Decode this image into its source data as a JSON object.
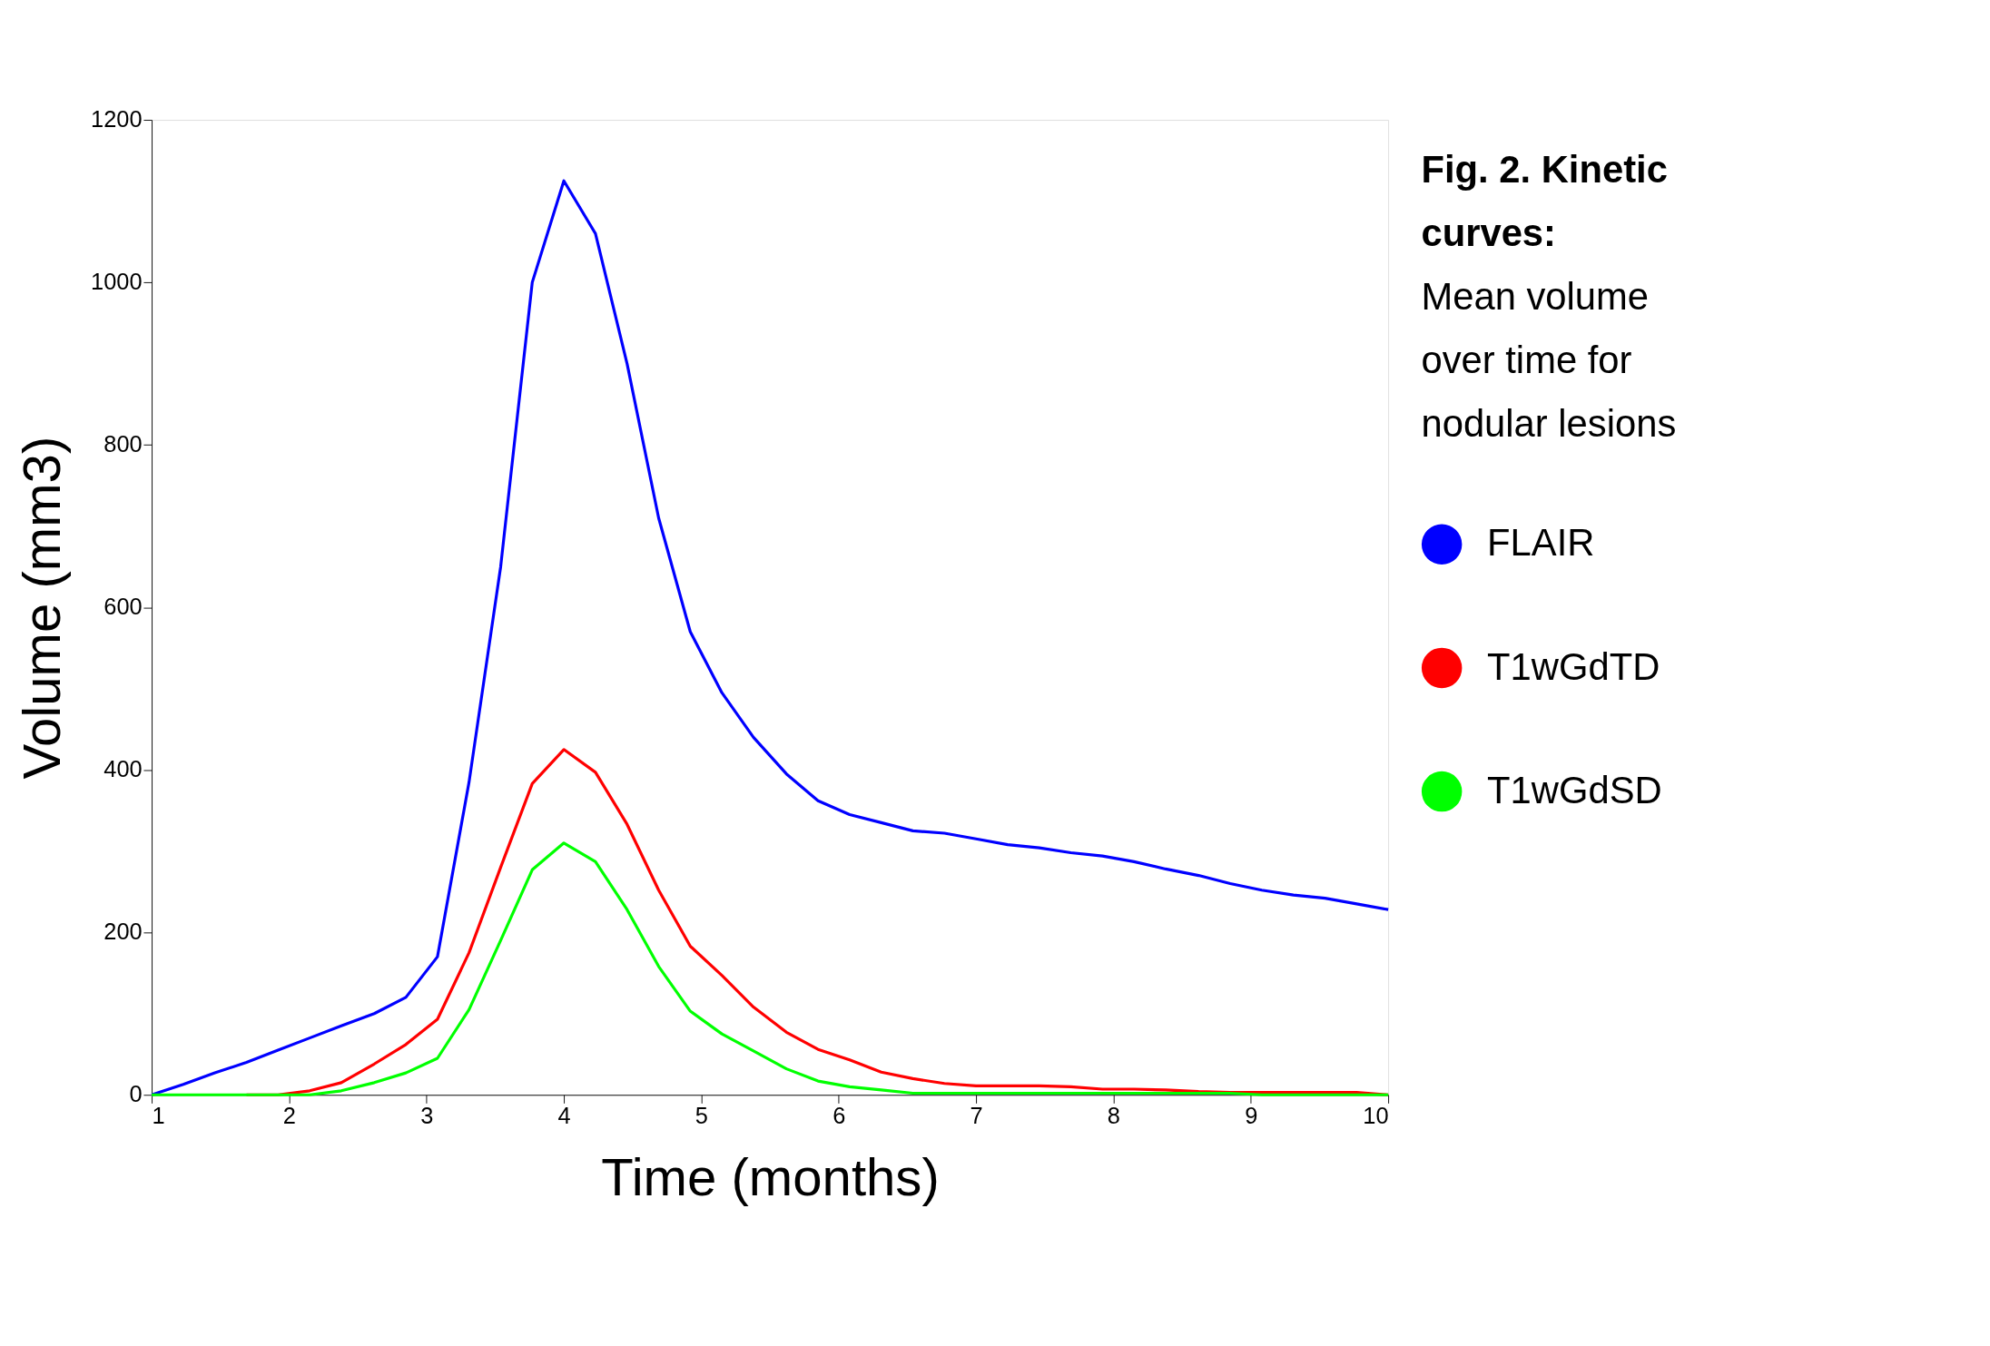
{
  "chart_data": {
    "type": "line",
    "title": "Fig. 2. Kinetic curves:",
    "subtitle": "Mean volume over time for nodular lesions",
    "xlabel": "Time (months)",
    "ylabel": "Volume (mm3)",
    "x": [
      1,
      1.23,
      1.46,
      1.69,
      1.92,
      2.15,
      2.38,
      2.62,
      2.85,
      3.08,
      3.31,
      3.54,
      3.77,
      4.0,
      4.23,
      4.46,
      4.69,
      4.92,
      5.15,
      5.38,
      5.62,
      5.85,
      6.08,
      6.31,
      6.54,
      6.77,
      7.0,
      7.23,
      7.46,
      7.69,
      7.92,
      8.15,
      8.38,
      8.62,
      8.85,
      9.08,
      9.31,
      9.54,
      9.77,
      10
    ],
    "series": [
      {
        "name": "FLAIR",
        "color": "#0000ff",
        "values": [
          0,
          13,
          27,
          40,
          55,
          70,
          85,
          100,
          120,
          170,
          385,
          650,
          1000,
          1125,
          1060,
          900,
          710,
          570,
          495,
          440,
          395,
          362,
          345,
          335,
          325,
          322,
          315,
          308,
          304,
          298,
          294,
          287,
          278,
          270,
          260,
          252,
          246,
          242,
          235,
          228
        ]
      },
      {
        "name": "T1wGdTD",
        "color": "#ff0000",
        "values": [
          null,
          null,
          null,
          0,
          0,
          5,
          15,
          38,
          62,
          93,
          175,
          280,
          383,
          425,
          397,
          333,
          252,
          183,
          147,
          108,
          77,
          56,
          43,
          28,
          20,
          14,
          11,
          11,
          11,
          10,
          7,
          7,
          6,
          4,
          3,
          3,
          3,
          3,
          3,
          0
        ]
      },
      {
        "name": "T1wGdSD",
        "color": "#00ff00",
        "values": [
          0,
          0,
          0,
          0,
          0,
          0,
          5,
          15,
          27,
          45,
          105,
          190,
          277,
          310,
          287,
          228,
          158,
          103,
          75,
          54,
          32,
          17,
          10,
          6,
          2,
          2,
          2,
          2,
          2,
          2,
          2,
          2,
          2,
          2,
          2,
          0,
          0,
          0,
          0,
          0
        ]
      }
    ],
    "xlim": [
      1,
      10
    ],
    "xticks": [
      1,
      2,
      3,
      4,
      5,
      6,
      7,
      8,
      9,
      10
    ],
    "ylim": [
      0,
      1200
    ],
    "yticks": [
      0,
      200,
      400,
      600,
      800,
      1000,
      1200
    ],
    "grid": false,
    "legend": "right",
    "marker": "none",
    "line_style": "solid"
  }
}
